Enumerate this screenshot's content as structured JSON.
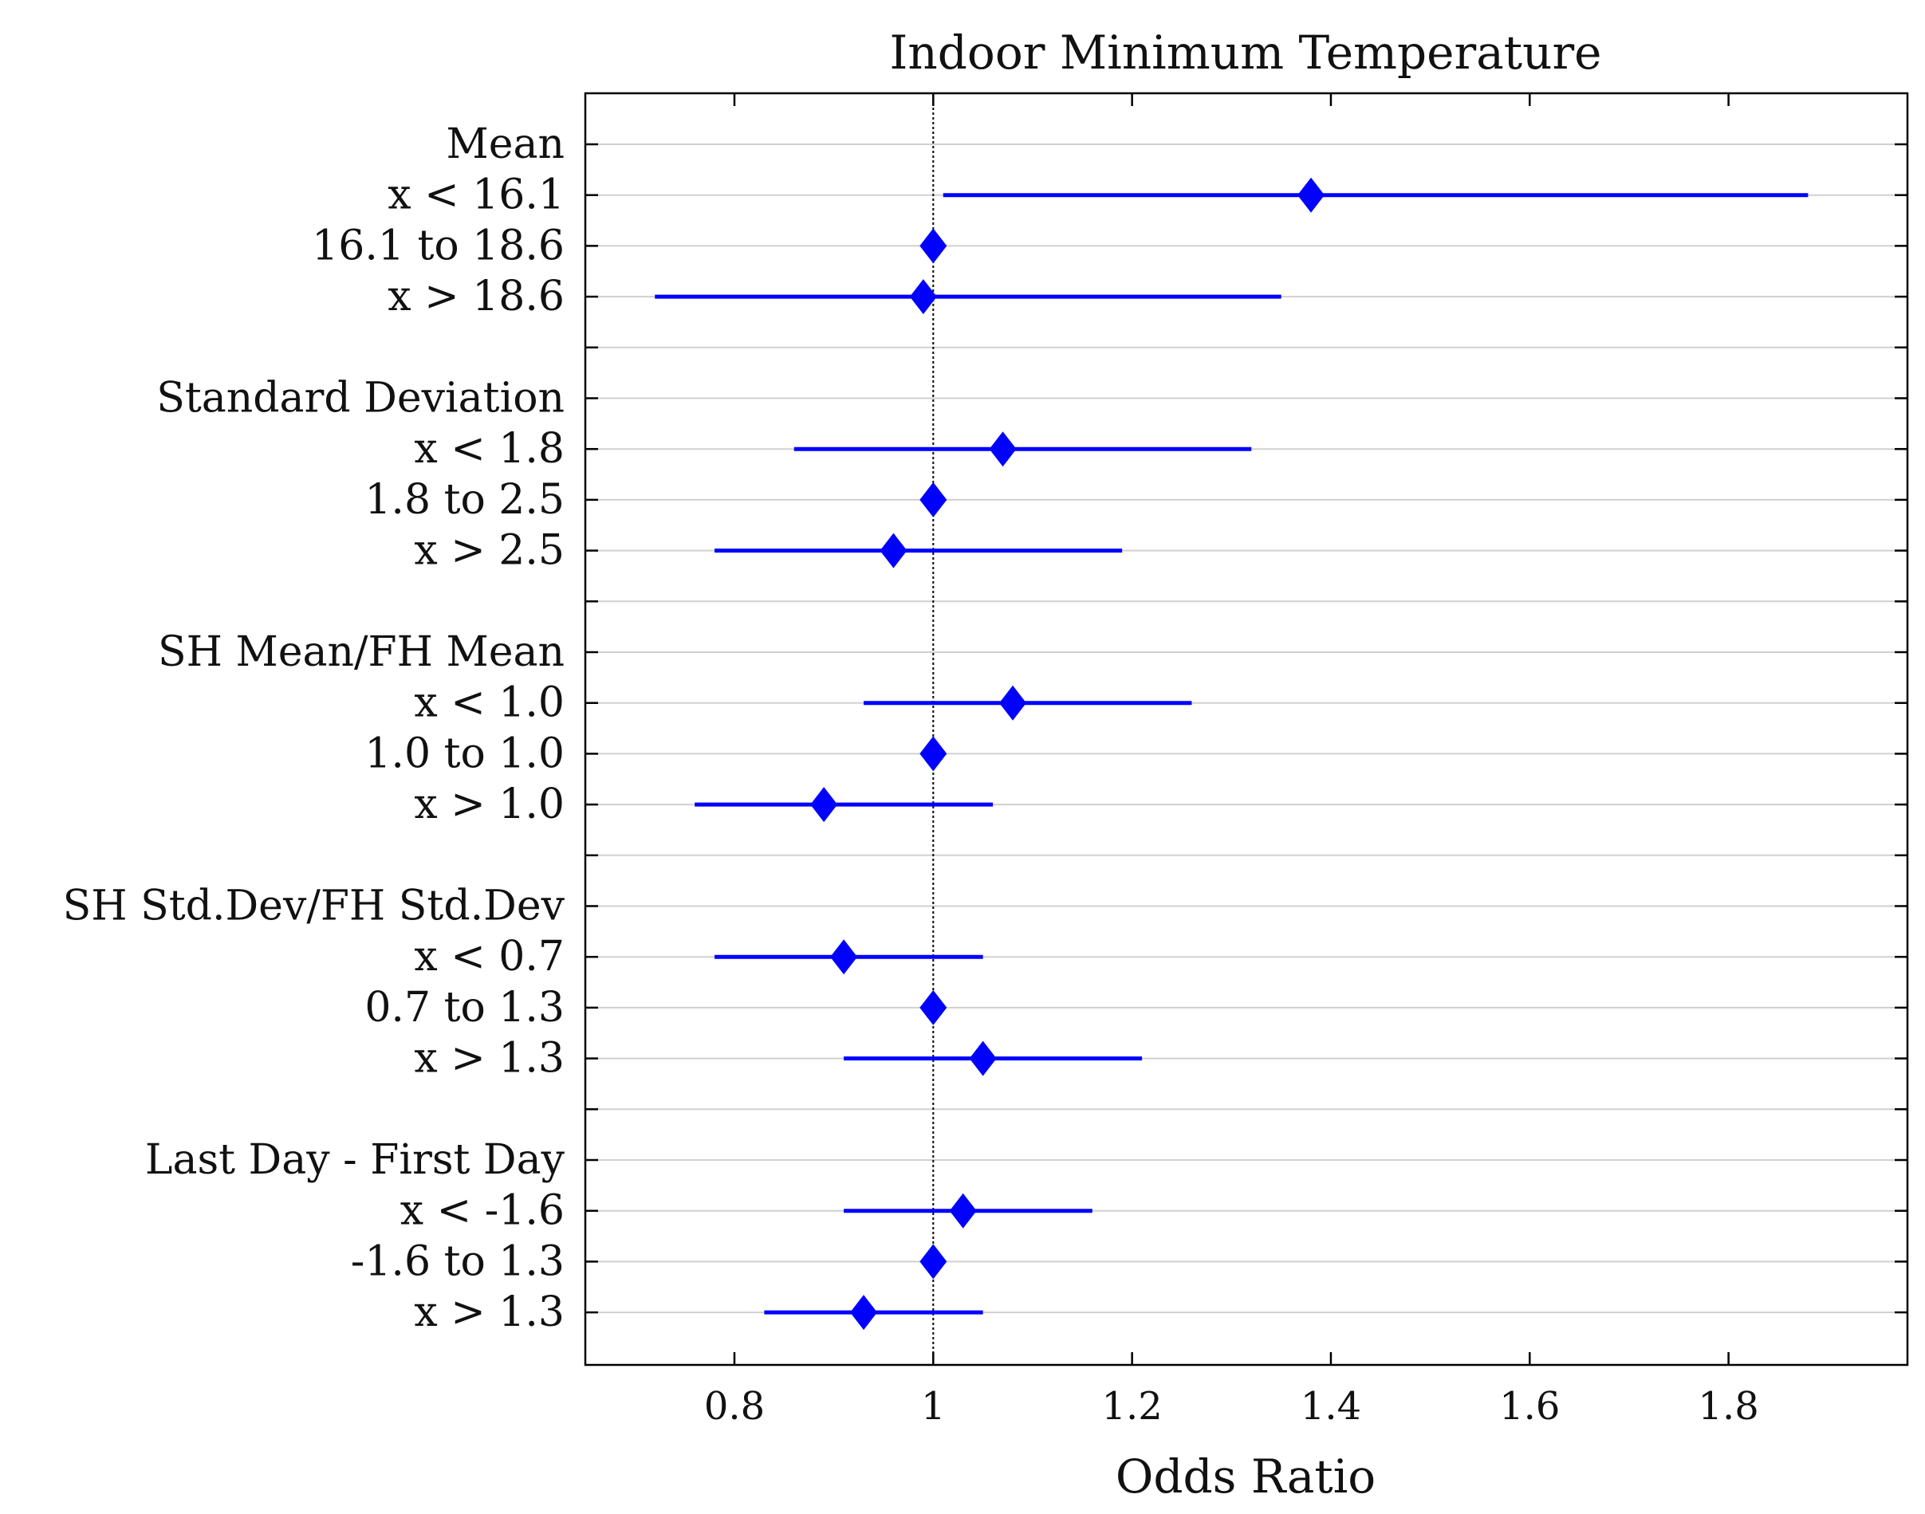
{
  "chart_data": {
    "type": "forest",
    "title": "Indoor Minimum Temperature",
    "xlabel": "Odds Ratio",
    "ylabel": "",
    "xlim": [
      0.65,
      1.98
    ],
    "xticks": [
      0.8,
      1,
      1.2,
      1.4,
      1.6,
      1.8
    ],
    "xtick_labels": [
      "0.8",
      "1",
      "1.2",
      "1.4",
      "1.6",
      "1.8"
    ],
    "reference_line": 1,
    "grid": "horizontal",
    "colors": {
      "marker": "#0000ff",
      "ci": "#0000ff",
      "grid": "#d0d0d0",
      "axis": "#000000"
    },
    "rows": [
      {
        "label": "Mean",
        "header": true
      },
      {
        "label": "x < 16.1",
        "or": 1.38,
        "lo": 1.01,
        "hi": 1.88
      },
      {
        "label": "16.1 to 18.6",
        "or": 1.0,
        "lo": 1.0,
        "hi": 1.0
      },
      {
        "label": "x > 18.6",
        "or": 0.99,
        "lo": 0.72,
        "hi": 1.35
      },
      {
        "label": "",
        "spacer": true
      },
      {
        "label": "Standard Deviation",
        "header": true
      },
      {
        "label": "x < 1.8",
        "or": 1.07,
        "lo": 0.86,
        "hi": 1.32
      },
      {
        "label": "1.8 to 2.5",
        "or": 1.0,
        "lo": 1.0,
        "hi": 1.0
      },
      {
        "label": "x > 2.5",
        "or": 0.96,
        "lo": 0.78,
        "hi": 1.19
      },
      {
        "label": "",
        "spacer": true
      },
      {
        "label": "SH Mean/FH Mean",
        "header": true
      },
      {
        "label": "x < 1.0",
        "or": 1.08,
        "lo": 0.93,
        "hi": 1.26
      },
      {
        "label": "1.0 to 1.0",
        "or": 1.0,
        "lo": 1.0,
        "hi": 1.0
      },
      {
        "label": "x > 1.0",
        "or": 0.89,
        "lo": 0.76,
        "hi": 1.06
      },
      {
        "label": "",
        "spacer": true
      },
      {
        "label": "SH Std.Dev/FH Std.Dev",
        "header": true
      },
      {
        "label": "x < 0.7",
        "or": 0.91,
        "lo": 0.78,
        "hi": 1.05
      },
      {
        "label": "0.7 to 1.3",
        "or": 1.0,
        "lo": 1.0,
        "hi": 1.0
      },
      {
        "label": "x > 1.3",
        "or": 1.05,
        "lo": 0.91,
        "hi": 1.21
      },
      {
        "label": "",
        "spacer": true
      },
      {
        "label": "Last Day - First Day",
        "header": true
      },
      {
        "label": "x < -1.6",
        "or": 1.03,
        "lo": 0.91,
        "hi": 1.16
      },
      {
        "label": "-1.6 to 1.3",
        "or": 1.0,
        "lo": 1.0,
        "hi": 1.0
      },
      {
        "label": "x > 1.3",
        "or": 0.93,
        "lo": 0.83,
        "hi": 1.05
      }
    ]
  }
}
